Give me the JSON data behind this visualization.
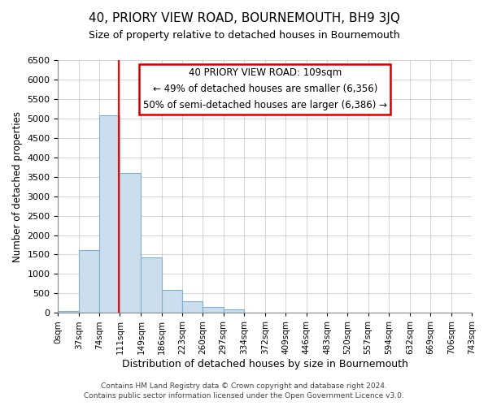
{
  "title": "40, PRIORY VIEW ROAD, BOURNEMOUTH, BH9 3JQ",
  "subtitle": "Size of property relative to detached houses in Bournemouth",
  "xlabel": "Distribution of detached houses by size in Bournemouth",
  "ylabel": "Number of detached properties",
  "bin_labels": [
    "0sqm",
    "37sqm",
    "74sqm",
    "111sqm",
    "149sqm",
    "186sqm",
    "223sqm",
    "260sqm",
    "297sqm",
    "334sqm",
    "372sqm",
    "409sqm",
    "446sqm",
    "483sqm",
    "520sqm",
    "557sqm",
    "594sqm",
    "632sqm",
    "669sqm",
    "706sqm",
    "743sqm"
  ],
  "bar_values": [
    50,
    1620,
    5080,
    3590,
    1420,
    590,
    300,
    150,
    80,
    0,
    0,
    0,
    0,
    0,
    0,
    0,
    0,
    0,
    0,
    0
  ],
  "bar_color": "#ccdded",
  "bar_edge_color": "#80aece",
  "property_line_x": 109,
  "bin_edges": [
    0,
    37,
    74,
    111,
    149,
    186,
    223,
    260,
    297,
    334,
    372,
    409,
    446,
    483,
    520,
    557,
    594,
    632,
    669,
    706,
    743
  ],
  "ylim": [
    0,
    6500
  ],
  "yticks": [
    0,
    500,
    1000,
    1500,
    2000,
    2500,
    3000,
    3500,
    4000,
    4500,
    5000,
    5500,
    6000,
    6500
  ],
  "annotation_line1": "40 PRIORY VIEW ROAD: 109sqm",
  "annotation_line2": "← 49% of detached houses are smaller (6,356)",
  "annotation_line3": "50% of semi-detached houses are larger (6,386) →",
  "footer_line1": "Contains HM Land Registry data © Crown copyright and database right 2024.",
  "footer_line2": "Contains public sector information licensed under the Open Government Licence v3.0.",
  "background_color": "#ffffff",
  "grid_color": "#cccccc"
}
